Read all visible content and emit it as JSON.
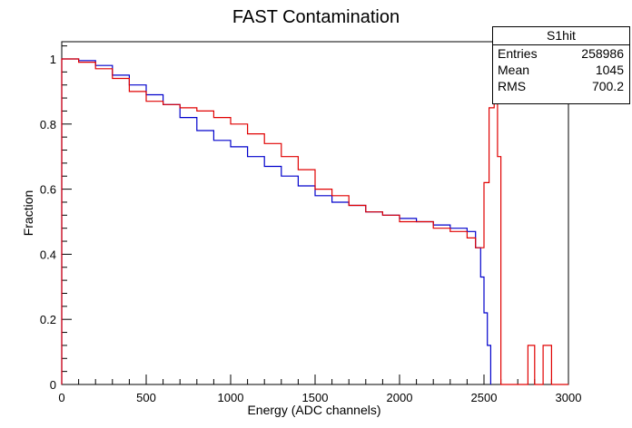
{
  "chart_data": {
    "type": "line",
    "title": "FAST Contamination",
    "xlabel": "Energy (ADC channels)",
    "ylabel": "Fraction",
    "xlim": [
      0,
      3000
    ],
    "ylim": [
      0,
      1.0
    ],
    "x_ticks": [
      "0",
      "500",
      "1000",
      "1500",
      "2000",
      "2500",
      "3000"
    ],
    "y_ticks": [
      "0",
      "0.2",
      "0.4",
      "0.6",
      "0.8",
      "1"
    ],
    "grid": false,
    "legend": "none",
    "colors": {
      "blue": "#0000cc",
      "red": "#e00000"
    },
    "series": [
      {
        "color": "blue",
        "x": [
          0,
          100,
          200,
          300,
          400,
          500,
          600,
          700,
          800,
          900,
          1000,
          1100,
          1200,
          1300,
          1400,
          1500,
          1600,
          1700,
          1800,
          1900,
          2000,
          2100,
          2200,
          2300,
          2400,
          2450,
          2480,
          2500,
          2520,
          2540
        ],
        "y": [
          1.0,
          0.995,
          0.98,
          0.95,
          0.92,
          0.89,
          0.86,
          0.82,
          0.78,
          0.75,
          0.73,
          0.7,
          0.67,
          0.64,
          0.61,
          0.58,
          0.56,
          0.55,
          0.53,
          0.52,
          0.51,
          0.5,
          0.49,
          0.48,
          0.47,
          0.42,
          0.33,
          0.22,
          0.12,
          0.0
        ]
      },
      {
        "color": "red",
        "x": [
          0,
          100,
          200,
          300,
          400,
          500,
          600,
          700,
          800,
          900,
          1000,
          1100,
          1200,
          1300,
          1400,
          1500,
          1600,
          1700,
          1800,
          1900,
          2000,
          2100,
          2200,
          2300,
          2400,
          2450,
          2500,
          2530,
          2560,
          2580,
          2600,
          2700,
          2760,
          2800,
          2850,
          2900,
          3000
        ],
        "y": [
          1.0,
          0.99,
          0.97,
          0.94,
          0.9,
          0.87,
          0.86,
          0.85,
          0.84,
          0.82,
          0.8,
          0.77,
          0.74,
          0.7,
          0.66,
          0.6,
          0.58,
          0.55,
          0.53,
          0.52,
          0.5,
          0.5,
          0.48,
          0.47,
          0.45,
          0.42,
          0.62,
          0.85,
          0.95,
          0.7,
          0.0,
          0.0,
          0.12,
          0.0,
          0.12,
          0.0,
          0.0
        ]
      }
    ],
    "stats_box": {
      "title": "S1hit",
      "rows": [
        {
          "label": "Entries",
          "value": "258986"
        },
        {
          "label": "Mean",
          "value": "1045"
        },
        {
          "label": "RMS",
          "value": "700.2"
        }
      ]
    }
  }
}
